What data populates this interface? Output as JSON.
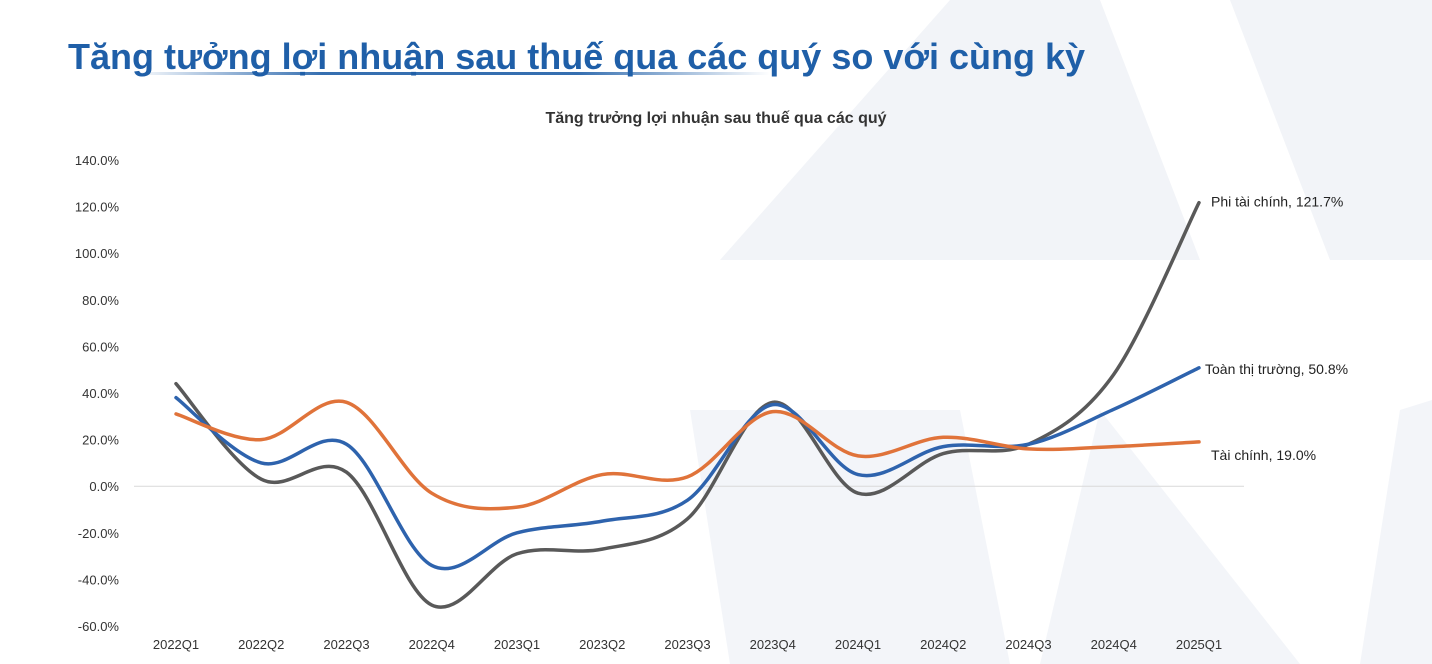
{
  "page": {
    "title": "Tăng tưởng lợi nhuận sau thuế qua các quý so với cùng kỳ"
  },
  "colors": {
    "accent": "#1f5fa8",
    "watermark": "#f2f4f8"
  },
  "chart_data": {
    "type": "line",
    "title": "Tăng trưởng lợi nhuận sau thuế qua các quý",
    "xlabel": "",
    "ylabel": "",
    "categories": [
      "2022Q1",
      "2022Q2",
      "2022Q3",
      "2022Q4",
      "2023Q1",
      "2023Q2",
      "2023Q3",
      "2023Q4",
      "2024Q1",
      "2024Q2",
      "2024Q3",
      "2024Q4",
      "2025Q1"
    ],
    "ylim": [
      -60,
      140
    ],
    "yticks": [
      140,
      120,
      100,
      80,
      60,
      40,
      20,
      0,
      -20,
      -40,
      -60
    ],
    "ytick_labels": [
      "140.0%",
      "120.0%",
      "100.0%",
      "80.0%",
      "60.0%",
      "40.0%",
      "20.0%",
      "0.0%",
      "-20.0%",
      "-40.0%",
      "-60.0%"
    ],
    "grid": false,
    "legend": "end-labels",
    "series": [
      {
        "name": "Phi tài chính",
        "end_label": "Phi tài chính, 121.7%",
        "color": "#595959",
        "values": [
          44,
          3,
          6,
          -51,
          -29,
          -27,
          -14,
          36,
          -3,
          14,
          18,
          48,
          121.7
        ]
      },
      {
        "name": "Toàn thị trường",
        "end_label": "Toàn thị trường, 50.8%",
        "color": "#2e63ad",
        "values": [
          38,
          10,
          18,
          -34,
          -20,
          -15,
          -6,
          35,
          5,
          17,
          18,
          33,
          50.8
        ]
      },
      {
        "name": "Tài chính",
        "end_label": "Tài chính, 19.0%",
        "color": "#e0733a",
        "values": [
          31,
          20,
          36,
          -3,
          -9,
          5,
          4,
          32,
          13,
          21,
          16,
          17,
          19.0
        ]
      }
    ]
  }
}
